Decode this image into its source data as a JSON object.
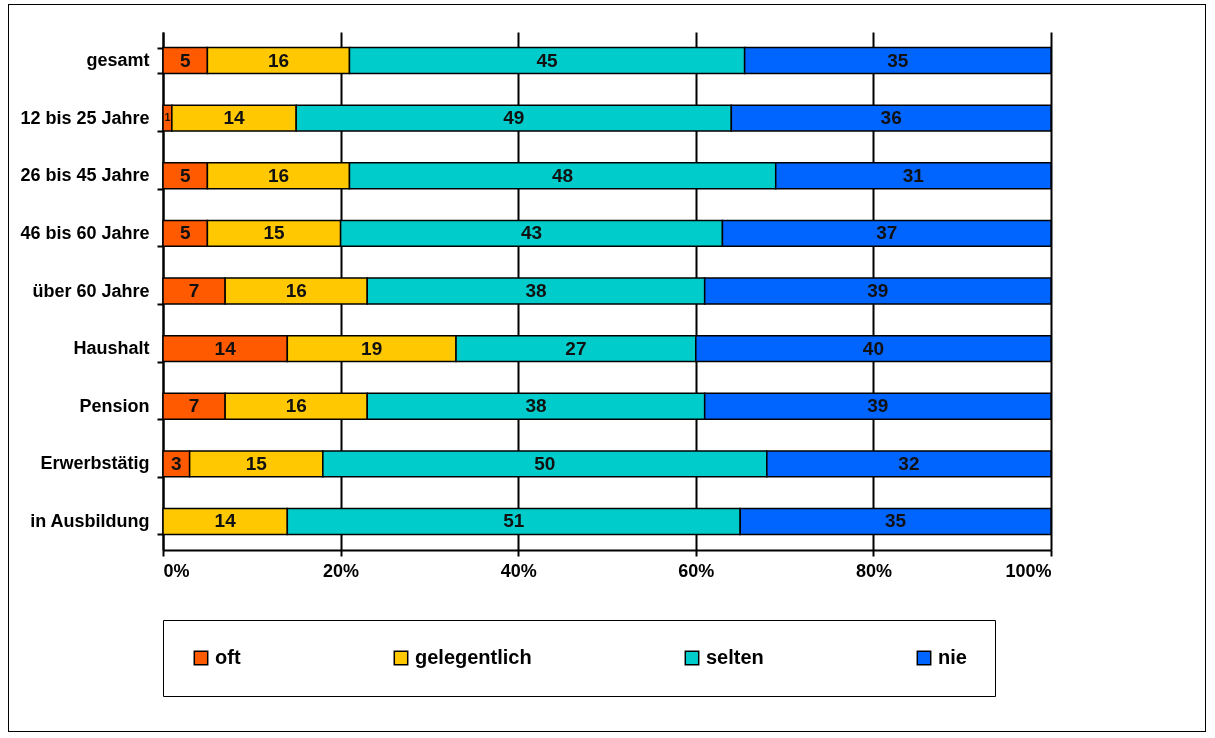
{
  "chart_data": {
    "type": "bar",
    "orientation": "horizontal",
    "stacked": true,
    "categories": [
      "gesamt",
      "12 bis 25 Jahre",
      "26 bis 45 Jahre",
      "46 bis 60 Jahre",
      "über 60 Jahre",
      "Haushalt",
      "Pension",
      "Erwerbstätig",
      "in Ausbildung"
    ],
    "series": [
      {
        "name": "oft",
        "color": "#ff5a00",
        "values": [
          5,
          1,
          5,
          5,
          7,
          14,
          7,
          3,
          null
        ],
        "value_labels": [
          "5",
          "1",
          "5",
          "5",
          "7",
          "14",
          "7",
          "3",
          null
        ]
      },
      {
        "name": "gelegentlich",
        "color": "#ffc800",
        "values": [
          16,
          14,
          16,
          15,
          16,
          19,
          16,
          15,
          14
        ],
        "value_labels": [
          "16",
          "14",
          "16",
          "15",
          "16",
          "19",
          "16",
          "15",
          "14"
        ]
      },
      {
        "name": "selten",
        "color": "#00cccc",
        "values": [
          44.5,
          49,
          48,
          43,
          38,
          27,
          38,
          50,
          51
        ],
        "value_labels": [
          "45",
          "49",
          "48",
          "43",
          "38",
          "27",
          "38",
          "50",
          "51"
        ]
      },
      {
        "name": "nie",
        "color": "#0064ff",
        "values": [
          34.5,
          36,
          31,
          37,
          39,
          40,
          39,
          32,
          35
        ],
        "value_labels": [
          "35",
          "36",
          "31",
          "37",
          "39",
          "40",
          "39",
          "32",
          "35"
        ]
      }
    ],
    "xlim": [
      0,
      100
    ],
    "xticks": [
      {
        "value": 0,
        "label": "0%"
      },
      {
        "value": 20,
        "label": "20%"
      },
      {
        "value": 40,
        "label": "40%"
      },
      {
        "value": 60,
        "label": "60%"
      },
      {
        "value": 80,
        "label": "80%"
      },
      {
        "value": 100,
        "label": "100%"
      }
    ],
    "grid": "x",
    "legend": "bottom"
  }
}
